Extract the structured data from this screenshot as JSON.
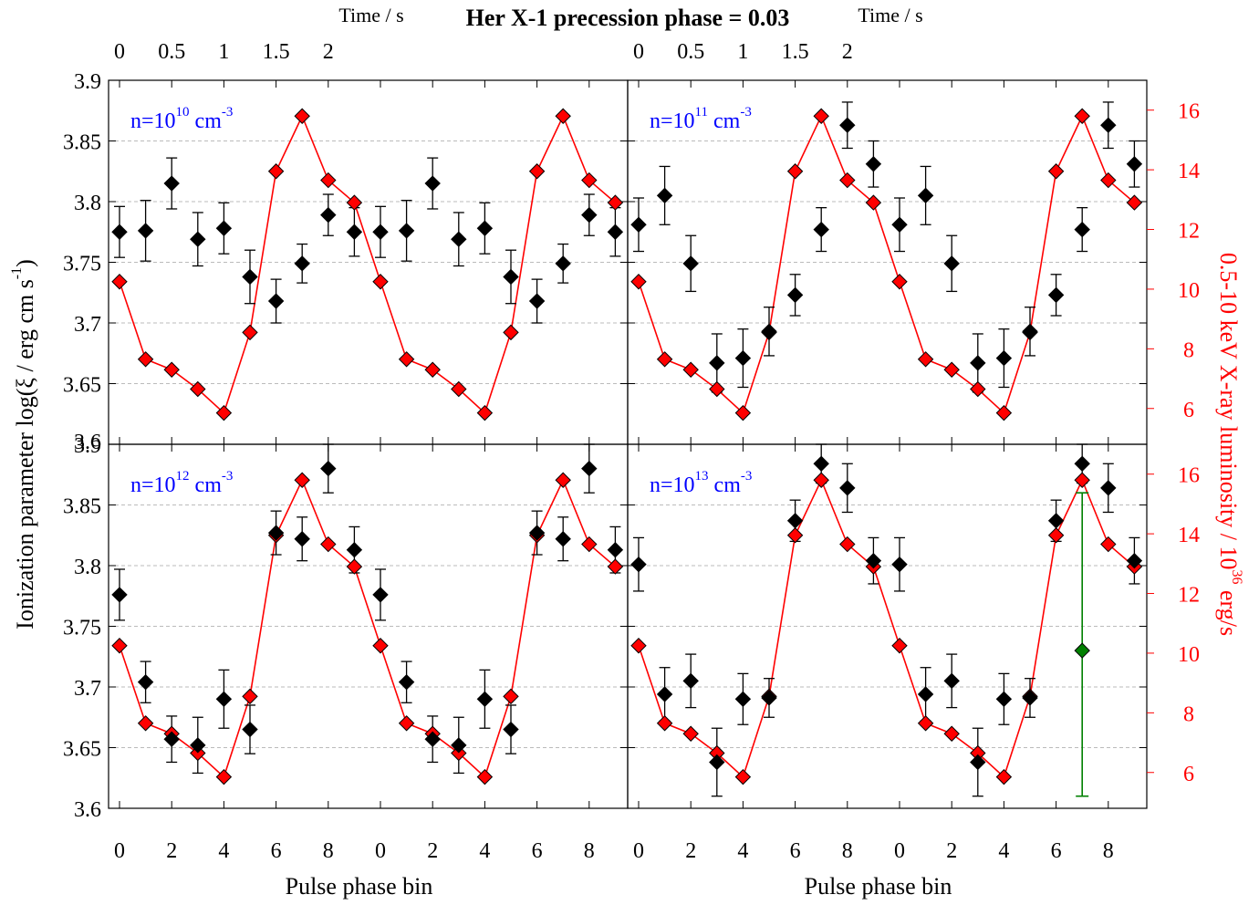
{
  "chart_data": {
    "type": "scatter",
    "title": "Her X-1 precession phase = 0.03",
    "xlabel": "Pulse phase bin",
    "x2label": "Time / s",
    "ylabel": "Ionization parameter log(ξ / erg cm s",
    "ylabel_sup": "-1",
    "ylabel_end": ")",
    "y2label": "0.5-10 keV X-ray luminosity / 10",
    "y2label_sup": "36",
    "y2label_end": " erg/s",
    "xlim": [
      -0.5,
      9.5
    ],
    "ylim": [
      3.6,
      3.9
    ],
    "y2lim": [
      4.8,
      17.0
    ],
    "xticks": [
      0,
      2,
      4,
      6,
      8
    ],
    "x2ticks": [
      "0",
      "0.5",
      "1",
      "1.5",
      "2"
    ],
    "x2tick_bins": [
      0,
      2.0,
      4.0,
      6.0,
      8.0
    ],
    "yticks": [
      "3.6",
      "3.65",
      "3.7",
      "3.75",
      "3.8",
      "3.85",
      "3.9"
    ],
    "y2ticks": [
      "6",
      "8",
      "10",
      "12",
      "14",
      "16"
    ],
    "grid": true,
    "colors": {
      "ionization": "#000000",
      "luminosity": "#ff0000",
      "label": "#0000ff",
      "errorbar_example": "#008000",
      "grid": "#bbbbbb"
    },
    "luminosity": {
      "x": [
        0,
        1,
        2,
        3,
        4,
        5,
        6,
        7,
        8,
        9,
        10,
        11,
        12,
        13,
        14,
        15,
        16,
        17,
        18,
        19
      ],
      "values": [
        10.25,
        7.65,
        7.3,
        6.65,
        5.85,
        8.55,
        13.95,
        15.8,
        13.65,
        12.9,
        10.25,
        7.65,
        7.3,
        6.65,
        5.85,
        8.55,
        13.95,
        15.8,
        13.65,
        12.9
      ]
    },
    "panels": [
      {
        "label": "n=10",
        "exponent": "10",
        "unit": " cm",
        "unit_exp": "-3",
        "x": [
          0,
          1,
          2,
          3,
          4,
          5,
          6,
          7,
          8,
          9,
          10,
          11,
          12,
          13,
          14,
          15,
          16,
          17,
          18,
          19
        ],
        "values": [
          3.775,
          3.776,
          3.815,
          3.769,
          3.778,
          3.738,
          3.718,
          3.749,
          3.789,
          3.775,
          3.775,
          3.776,
          3.815,
          3.769,
          3.778,
          3.738,
          3.718,
          3.749,
          3.789,
          3.775
        ],
        "errors": [
          0.021,
          0.025,
          0.021,
          0.022,
          0.021,
          0.022,
          0.018,
          0.016,
          0.017,
          0.02,
          0.021,
          0.025,
          0.021,
          0.022,
          0.021,
          0.022,
          0.018,
          0.016,
          0.017,
          0.02
        ]
      },
      {
        "label": "n=10",
        "exponent": "11",
        "unit": " cm",
        "unit_exp": "-3",
        "x": [
          0,
          1,
          2,
          3,
          4,
          5,
          6,
          7,
          8,
          9,
          10,
          11,
          12,
          13,
          14,
          15,
          16,
          17,
          18,
          19
        ],
        "values": [
          3.781,
          3.805,
          3.749,
          3.667,
          3.671,
          3.693,
          3.723,
          3.777,
          3.863,
          3.831,
          3.781,
          3.805,
          3.749,
          3.667,
          3.671,
          3.693,
          3.723,
          3.777,
          3.863,
          3.831
        ],
        "errors": [
          0.022,
          0.024,
          0.023,
          0.024,
          0.024,
          0.02,
          0.017,
          0.018,
          0.019,
          0.019,
          0.022,
          0.024,
          0.023,
          0.024,
          0.024,
          0.02,
          0.017,
          0.018,
          0.019,
          0.019
        ]
      },
      {
        "label": "n=10",
        "exponent": "12",
        "unit": " cm",
        "unit_exp": "-3",
        "x": [
          0,
          1,
          2,
          3,
          4,
          5,
          6,
          7,
          8,
          9,
          10,
          11,
          12,
          13,
          14,
          15,
          16,
          17,
          18,
          19
        ],
        "values": [
          3.776,
          3.704,
          3.657,
          3.652,
          3.69,
          3.665,
          3.827,
          3.822,
          3.88,
          3.813,
          3.776,
          3.704,
          3.657,
          3.652,
          3.69,
          3.665,
          3.827,
          3.822,
          3.88,
          3.813
        ],
        "errors": [
          0.021,
          0.017,
          0.019,
          0.023,
          0.024,
          0.02,
          0.018,
          0.018,
          0.02,
          0.019,
          0.021,
          0.017,
          0.019,
          0.023,
          0.024,
          0.02,
          0.018,
          0.018,
          0.02,
          0.019
        ]
      },
      {
        "label": "n=10",
        "exponent": "13",
        "unit": " cm",
        "unit_exp": "-3",
        "x": [
          0,
          1,
          2,
          3,
          4,
          5,
          6,
          7,
          8,
          9,
          10,
          11,
          12,
          13,
          14,
          15,
          16,
          17,
          18,
          19
        ],
        "values": [
          3.801,
          3.694,
          3.705,
          3.638,
          3.69,
          3.691,
          3.837,
          3.884,
          3.864,
          3.804,
          3.801,
          3.694,
          3.705,
          3.638,
          3.69,
          3.691,
          3.837,
          3.884,
          3.864,
          3.804
        ],
        "errors": [
          0.022,
          0.022,
          0.022,
          0.028,
          0.021,
          0.016,
          0.017,
          0.016,
          0.02,
          0.019,
          0.022,
          0.022,
          0.022,
          0.028,
          0.021,
          0.016,
          0.017,
          0.016,
          0.02,
          0.019
        ]
      }
    ],
    "example_errorbar": {
      "x": 17,
      "value": 3.73,
      "low": 3.61,
      "high": 3.86
    }
  }
}
